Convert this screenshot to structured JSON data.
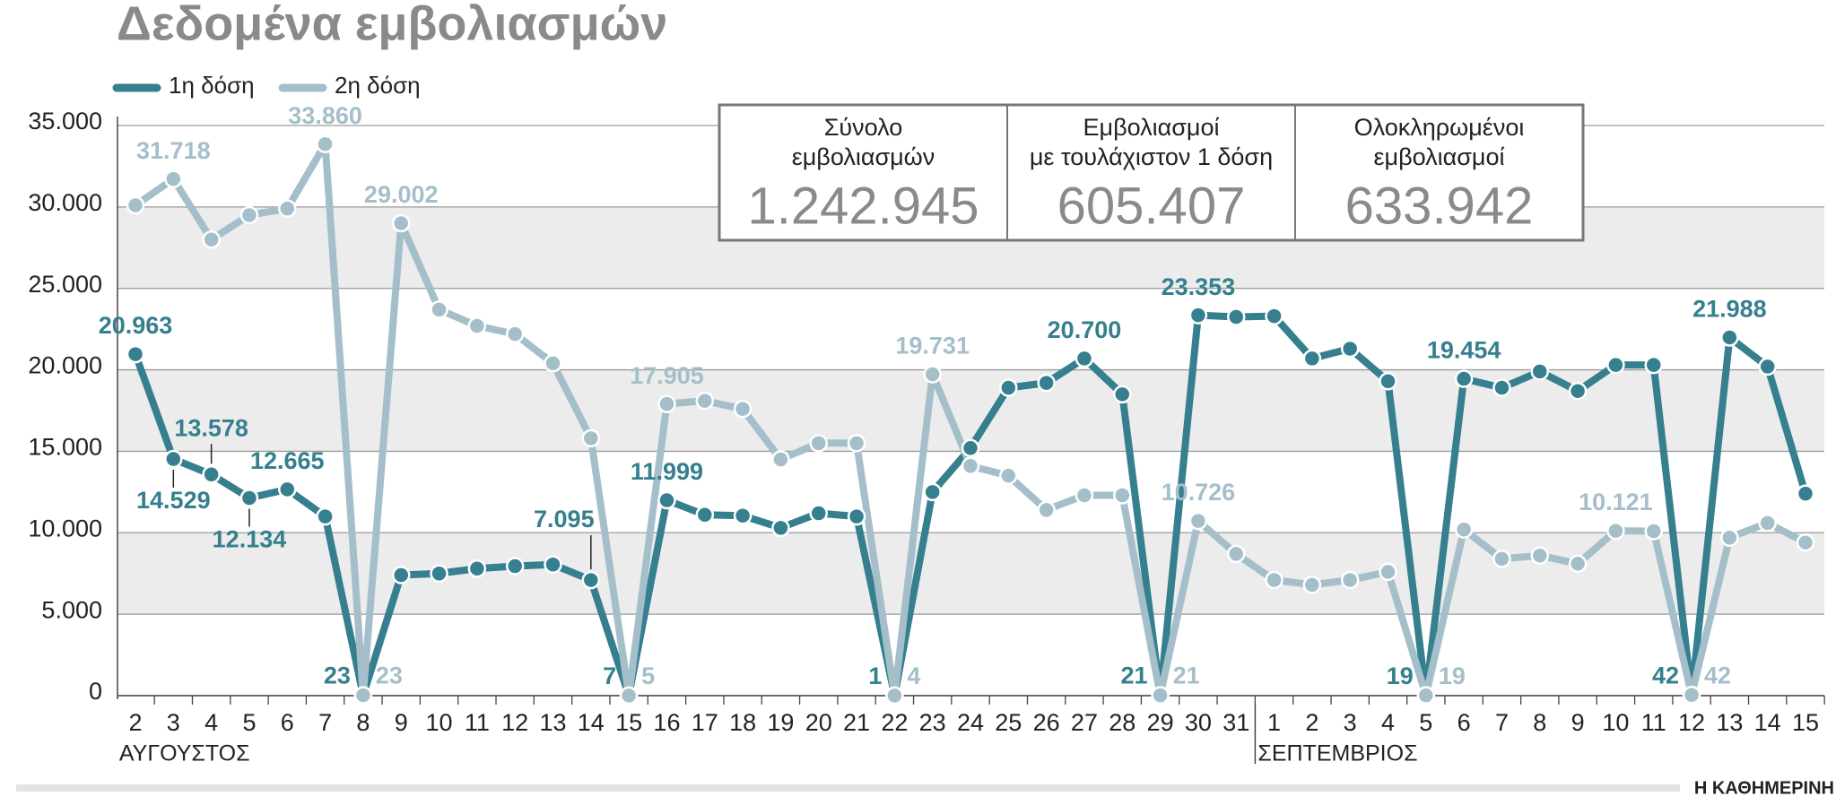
{
  "chart_data": {
    "type": "line",
    "title": "Δεδομένα εμβολιασμών",
    "source": "Η ΚΑΘΗΜΕΡΙΝΗ",
    "categories": [
      "2",
      "3",
      "4",
      "5",
      "6",
      "7",
      "8",
      "9",
      "10",
      "11",
      "12",
      "13",
      "14",
      "15",
      "16",
      "17",
      "18",
      "19",
      "20",
      "21",
      "22",
      "23",
      "24",
      "25",
      "26",
      "27",
      "28",
      "29",
      "30",
      "31",
      "1",
      "2",
      "3",
      "4",
      "5",
      "6",
      "7",
      "8",
      "9",
      "10",
      "11",
      "12",
      "13",
      "14",
      "15"
    ],
    "month_labels": [
      "ΑΥΓΟΥΣΤΟΣ",
      null,
      null,
      null,
      null,
      null,
      null,
      null,
      null,
      null,
      null,
      null,
      null,
      null,
      null,
      null,
      null,
      null,
      null,
      null,
      null,
      null,
      null,
      null,
      null,
      null,
      null,
      null,
      null,
      null,
      "ΣΕΠΤΕΜΒΡΙΟΣ",
      null,
      null,
      null,
      null,
      null,
      null,
      null,
      null,
      null,
      null,
      null,
      null,
      null,
      null
    ],
    "series": [
      {
        "name": "1η δόση",
        "color": "#357f8f",
        "values": [
          20963,
          14529,
          13578,
          12134,
          12665,
          11000,
          23,
          7400,
          7500,
          7800,
          7950,
          8050,
          7095,
          7,
          11999,
          11100,
          11050,
          10300,
          11200,
          11000,
          1,
          12500,
          15200,
          18900,
          19200,
          20700,
          18500,
          21,
          23353,
          23250,
          23300,
          20700,
          21300,
          19300,
          19,
          19454,
          18900,
          19900,
          18700,
          20300,
          20300,
          42,
          21988,
          20200,
          12400
        ],
        "value_labels": [
          "20.963",
          "14.529",
          "13.578",
          "12.134",
          "12.665",
          null,
          "23",
          null,
          null,
          null,
          null,
          null,
          "7.095",
          "7",
          "11.999",
          null,
          null,
          null,
          null,
          null,
          "1",
          null,
          null,
          null,
          null,
          "20.700",
          null,
          "21",
          "23.353",
          null,
          null,
          null,
          null,
          null,
          "19",
          "19.454",
          null,
          null,
          null,
          null,
          null,
          "42",
          "21.988",
          null,
          null
        ]
      },
      {
        "name": "2η δόση",
        "color": "#a5bfca",
        "values": [
          30100,
          31718,
          28000,
          29500,
          29900,
          33860,
          23,
          29002,
          23700,
          22700,
          22200,
          20400,
          15800,
          5,
          17905,
          18100,
          17600,
          14500,
          15500,
          15500,
          4,
          19731,
          14100,
          13500,
          11400,
          12300,
          12300,
          21,
          10726,
          8700,
          7100,
          6800,
          7100,
          7600,
          19,
          10200,
          8400,
          8600,
          8100,
          10121,
          10100,
          42,
          9700,
          10600,
          9400
        ],
        "value_labels": [
          null,
          "31.718",
          null,
          null,
          null,
          "33.860",
          "23",
          "29.002",
          null,
          null,
          null,
          null,
          null,
          "5",
          "17.905",
          null,
          null,
          null,
          null,
          null,
          "4",
          "19.731",
          null,
          null,
          null,
          null,
          null,
          "21",
          "10.726",
          null,
          null,
          null,
          null,
          null,
          "19",
          null,
          null,
          null,
          null,
          "10.121",
          null,
          "42",
          null,
          null,
          null
        ]
      }
    ],
    "ylim": [
      0,
      35000
    ],
    "yticks": [
      0,
      {
        "value": 5000,
        "label": "5.000"
      },
      {
        "value": 10000,
        "label": "10.000"
      },
      {
        "value": 15000,
        "label": "15.000"
      },
      {
        "value": 20000,
        "label": "20.000"
      },
      {
        "value": 25000,
        "label": "25.000"
      },
      {
        "value": 30000,
        "label": "30.000"
      },
      {
        "value": 35000,
        "label": "35.000"
      }
    ],
    "grid": true,
    "info_boxes": [
      {
        "label": [
          "Σύνολο",
          "εμβολιασμών"
        ],
        "value": "1.242.945"
      },
      {
        "label": [
          "Εμβολιασμοί",
          "με τουλάχιστον 1 δόση"
        ],
        "value": "605.407"
      },
      {
        "label": [
          "Ολοκληρωμένοι",
          "εμβολιασμοί"
        ],
        "value": "633.942"
      }
    ]
  }
}
